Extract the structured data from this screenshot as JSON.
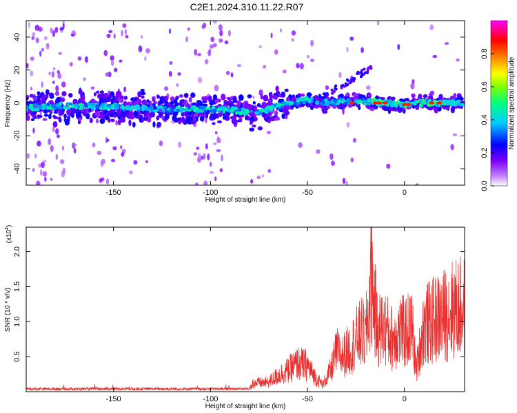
{
  "title": "C2E1.2024.310.11.22.R07",
  "chart_data": [
    {
      "type": "heatmap",
      "xlabel": "Height of straight line (km)",
      "ylabel": "Frequency (Hz)",
      "xlim": [
        -195,
        31
      ],
      "ylim": [
        -50,
        50
      ],
      "xticks": [
        -150,
        -100,
        -50,
        0
      ],
      "yticks": [
        -40,
        -20,
        0,
        20,
        40
      ],
      "colorbar": {
        "label": "Normalized spectral amplitude",
        "ticks": [
          0.0,
          0.2,
          0.4,
          0.6,
          0.8
        ],
        "range": [
          0,
          1
        ],
        "colormap": [
          "#ffffff",
          "#8000ff",
          "#0000ff",
          "#00ffff",
          "#00ff00",
          "#ffff00",
          "#ff8000",
          "#ff0000",
          "#ff00ff"
        ]
      },
      "ridge": [
        {
          "x": -195,
          "y": -3
        },
        {
          "x": -180,
          "y": -2
        },
        {
          "x": -160,
          "y": -2
        },
        {
          "x": -140,
          "y": -3
        },
        {
          "x": -120,
          "y": -4
        },
        {
          "x": -100,
          "y": -4
        },
        {
          "x": -90,
          "y": -4
        },
        {
          "x": -80,
          "y": -6
        },
        {
          "x": -70,
          "y": -4
        },
        {
          "x": -60,
          "y": 0
        },
        {
          "x": -50,
          "y": 2
        },
        {
          "x": -40,
          "y": 0
        },
        {
          "x": -30,
          "y": 1
        },
        {
          "x": -20,
          "y": 1
        },
        {
          "x": -10,
          "y": 0
        },
        {
          "x": 0,
          "y": -1
        },
        {
          "x": 10,
          "y": 0
        },
        {
          "x": 20,
          "y": 0
        },
        {
          "x": 31,
          "y": 0
        }
      ]
    },
    {
      "type": "line",
      "xlabel": "Height of straight line (km)",
      "ylabel": "SNR (10 * v/v)",
      "y_multiplier": "(x10",
      "y_multiplier_exp": "4",
      "y_multiplier_close": ")",
      "xlim": [
        -195,
        31
      ],
      "ylim": [
        0,
        2.35
      ],
      "xticks": [
        -150,
        -100,
        -50,
        0
      ],
      "yticks": [
        0.5,
        1.0,
        1.5,
        2.0
      ],
      "color": "#e8312f",
      "series": [
        {
          "values": [
            {
              "x": -195,
              "y": 0.01
            },
            {
              "x": -180,
              "y": 0.02
            },
            {
              "x": -175,
              "y": 0.12
            },
            {
              "x": -165,
              "y": 0.03
            },
            {
              "x": -150,
              "y": 0.04
            },
            {
              "x": -140,
              "y": 0.05
            },
            {
              "x": -120,
              "y": 0.12
            },
            {
              "x": -110,
              "y": 0.06
            },
            {
              "x": -100,
              "y": 0.05
            },
            {
              "x": -90,
              "y": 0.04
            },
            {
              "x": -80,
              "y": 0.06
            },
            {
              "x": -78,
              "y": 0.18
            },
            {
              "x": -70,
              "y": 0.2
            },
            {
              "x": -65,
              "y": 0.35
            },
            {
              "x": -60,
              "y": 0.45
            },
            {
              "x": -55,
              "y": 0.6
            },
            {
              "x": -50,
              "y": 0.55
            },
            {
              "x": -46,
              "y": 0.3
            },
            {
              "x": -42,
              "y": 0.15
            },
            {
              "x": -38,
              "y": 0.45
            },
            {
              "x": -35,
              "y": 0.85
            },
            {
              "x": -32,
              "y": 0.75
            },
            {
              "x": -28,
              "y": 0.9
            },
            {
              "x": -25,
              "y": 1.1
            },
            {
              "x": -22,
              "y": 1.25
            },
            {
              "x": -20,
              "y": 1.15
            },
            {
              "x": -17,
              "y": 2.35
            },
            {
              "x": -14,
              "y": 1.3
            },
            {
              "x": -10,
              "y": 1.35
            },
            {
              "x": -6,
              "y": 1.1
            },
            {
              "x": -3,
              "y": 1.3
            },
            {
              "x": 0,
              "y": 1.25
            },
            {
              "x": 4,
              "y": 1.35
            },
            {
              "x": 6,
              "y": 0.45
            },
            {
              "x": 10,
              "y": 1.4
            },
            {
              "x": 15,
              "y": 1.5
            },
            {
              "x": 20,
              "y": 1.6
            },
            {
              "x": 25,
              "y": 1.75
            },
            {
              "x": 31,
              "y": 1.78
            }
          ]
        }
      ]
    }
  ]
}
